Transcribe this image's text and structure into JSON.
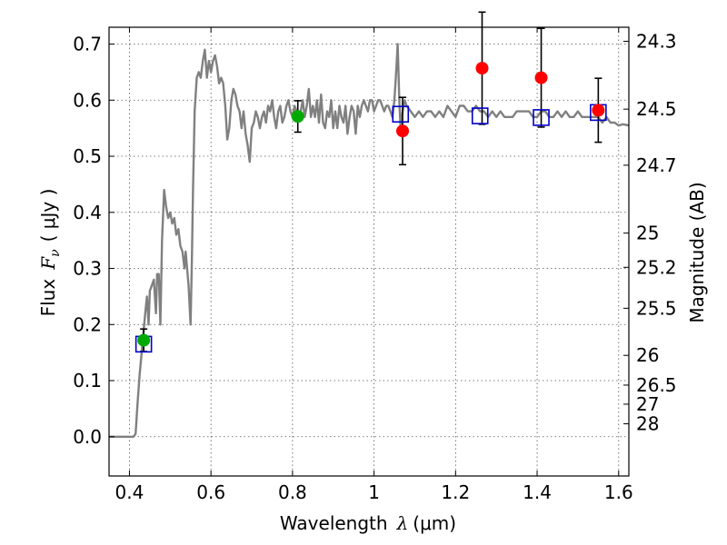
{
  "chart_data": {
    "type": "scatter",
    "xlabel_prefix": "Wavelength",
    "xlabel_symbol": "λ",
    "xlabel_unit": "(μm)",
    "ylabel_prefix": "Flux",
    "ylabel_symbol": "F",
    "ylabel_sub": "ν",
    "ylabel_unit": "( μJy )",
    "y2label": "Magnitude (AB)",
    "xlim": [
      0.35,
      1.625
    ],
    "ylim": [
      -0.07,
      0.73
    ],
    "x_ticks": [
      0.4,
      0.6,
      0.8,
      1.0,
      1.2,
      1.4,
      1.6
    ],
    "x_tick_labels": [
      "0.4",
      "0.6",
      "0.8",
      "1",
      "1.2",
      "1.4",
      "1.6"
    ],
    "y_ticks": [
      0.0,
      0.1,
      0.2,
      0.3,
      0.4,
      0.5,
      0.6,
      0.7
    ],
    "y_tick_labels": [
      "0.0",
      "0.1",
      "0.2",
      "0.3",
      "0.4",
      "0.5",
      "0.6",
      "0.7"
    ],
    "y2_ticks": [
      {
        "label": "24.3",
        "flux": 0.705
      },
      {
        "label": "24.5",
        "flux": 0.584
      },
      {
        "label": "24.7",
        "flux": 0.484
      },
      {
        "label": "25",
        "flux": 0.363
      },
      {
        "label": "25.2",
        "flux": 0.302
      },
      {
        "label": "25.5",
        "flux": 0.229
      },
      {
        "label": "26",
        "flux": 0.145
      },
      {
        "label": "26.5",
        "flux": 0.092
      },
      {
        "label": "27",
        "flux": 0.058
      },
      {
        "label": "28",
        "flux": 0.023
      }
    ],
    "grid": true,
    "colors": {
      "model": "#808080",
      "green": "#00aa00",
      "red": "#ff0000",
      "square": "#0000cc",
      "errorbar": "#000000"
    },
    "model_spectrum": {
      "name": "model",
      "points": [
        [
          0.35,
          0.0
        ],
        [
          0.41,
          0.0
        ],
        [
          0.415,
          0.005
        ],
        [
          0.42,
          0.06
        ],
        [
          0.425,
          0.11
        ],
        [
          0.43,
          0.15
        ],
        [
          0.435,
          0.19
        ],
        [
          0.44,
          0.23
        ],
        [
          0.443,
          0.25
        ],
        [
          0.447,
          0.2
        ],
        [
          0.45,
          0.26
        ],
        [
          0.455,
          0.27
        ],
        [
          0.46,
          0.28
        ],
        [
          0.465,
          0.22
        ],
        [
          0.468,
          0.29
        ],
        [
          0.472,
          0.29
        ],
        [
          0.476,
          0.2
        ],
        [
          0.48,
          0.35
        ],
        [
          0.485,
          0.44
        ],
        [
          0.49,
          0.41
        ],
        [
          0.495,
          0.39
        ],
        [
          0.5,
          0.4
        ],
        [
          0.505,
          0.38
        ],
        [
          0.51,
          0.39
        ],
        [
          0.515,
          0.36
        ],
        [
          0.52,
          0.37
        ],
        [
          0.525,
          0.34
        ],
        [
          0.53,
          0.33
        ],
        [
          0.535,
          0.3
        ],
        [
          0.538,
          0.33
        ],
        [
          0.545,
          0.27
        ],
        [
          0.55,
          0.2
        ],
        [
          0.553,
          0.31
        ],
        [
          0.556,
          0.44
        ],
        [
          0.56,
          0.58
        ],
        [
          0.565,
          0.64
        ],
        [
          0.57,
          0.65
        ],
        [
          0.575,
          0.64
        ],
        [
          0.58,
          0.67
        ],
        [
          0.585,
          0.69
        ],
        [
          0.59,
          0.64
        ],
        [
          0.595,
          0.67
        ],
        [
          0.6,
          0.65
        ],
        [
          0.605,
          0.67
        ],
        [
          0.61,
          0.68
        ],
        [
          0.615,
          0.66
        ],
        [
          0.62,
          0.63
        ],
        [
          0.625,
          0.64
        ],
        [
          0.63,
          0.63
        ],
        [
          0.635,
          0.59
        ],
        [
          0.64,
          0.53
        ],
        [
          0.645,
          0.55
        ],
        [
          0.65,
          0.6
        ],
        [
          0.655,
          0.62
        ],
        [
          0.66,
          0.61
        ],
        [
          0.665,
          0.59
        ],
        [
          0.67,
          0.58
        ],
        [
          0.675,
          0.55
        ],
        [
          0.68,
          0.58
        ],
        [
          0.685,
          0.54
        ],
        [
          0.69,
          0.52
        ],
        [
          0.695,
          0.49
        ],
        [
          0.7,
          0.55
        ],
        [
          0.705,
          0.56
        ],
        [
          0.71,
          0.58
        ],
        [
          0.715,
          0.57
        ],
        [
          0.72,
          0.55
        ],
        [
          0.725,
          0.57
        ],
        [
          0.73,
          0.58
        ],
        [
          0.735,
          0.56
        ],
        [
          0.74,
          0.59
        ],
        [
          0.745,
          0.58
        ],
        [
          0.75,
          0.6
        ],
        [
          0.755,
          0.57
        ],
        [
          0.76,
          0.55
        ],
        [
          0.765,
          0.58
        ],
        [
          0.77,
          0.59
        ],
        [
          0.775,
          0.56
        ],
        [
          0.78,
          0.57
        ],
        [
          0.785,
          0.59
        ],
        [
          0.79,
          0.6
        ],
        [
          0.795,
          0.58
        ],
        [
          0.8,
          0.57
        ],
        [
          0.805,
          0.59
        ],
        [
          0.81,
          0.58
        ],
        [
          0.815,
          0.57
        ],
        [
          0.82,
          0.58
        ],
        [
          0.825,
          0.6
        ],
        [
          0.83,
          0.57
        ],
        [
          0.835,
          0.59
        ],
        [
          0.84,
          0.62
        ],
        [
          0.845,
          0.57
        ],
        [
          0.85,
          0.59
        ],
        [
          0.855,
          0.57
        ],
        [
          0.86,
          0.6
        ],
        [
          0.865,
          0.56
        ],
        [
          0.87,
          0.61
        ],
        [
          0.875,
          0.56
        ],
        [
          0.88,
          0.55
        ],
        [
          0.885,
          0.58
        ],
        [
          0.89,
          0.57
        ],
        [
          0.895,
          0.6
        ],
        [
          0.9,
          0.55
        ],
        [
          0.905,
          0.58
        ],
        [
          0.91,
          0.55
        ],
        [
          0.915,
          0.59
        ],
        [
          0.92,
          0.57
        ],
        [
          0.925,
          0.56
        ],
        [
          0.93,
          0.59
        ],
        [
          0.935,
          0.54
        ],
        [
          0.94,
          0.57
        ],
        [
          0.945,
          0.59
        ],
        [
          0.95,
          0.58
        ],
        [
          0.955,
          0.54
        ],
        [
          0.96,
          0.59
        ],
        [
          0.965,
          0.57
        ],
        [
          0.97,
          0.59
        ],
        [
          0.975,
          0.6
        ],
        [
          0.98,
          0.59
        ],
        [
          0.985,
          0.58
        ],
        [
          0.99,
          0.6
        ],
        [
          0.995,
          0.6
        ],
        [
          1.0,
          0.58
        ],
        [
          1.005,
          0.59
        ],
        [
          1.01,
          0.6
        ],
        [
          1.015,
          0.6
        ],
        [
          1.02,
          0.59
        ],
        [
          1.025,
          0.58
        ],
        [
          1.03,
          0.59
        ],
        [
          1.035,
          0.59
        ],
        [
          1.04,
          0.58
        ],
        [
          1.045,
          0.57
        ],
        [
          1.05,
          0.6
        ],
        [
          1.055,
          0.66
        ],
        [
          1.058,
          0.7
        ],
        [
          1.062,
          0.6
        ],
        [
          1.065,
          0.55
        ],
        [
          1.07,
          0.58
        ],
        [
          1.075,
          0.6
        ],
        [
          1.08,
          0.59
        ],
        [
          1.09,
          0.58
        ],
        [
          1.1,
          0.57
        ],
        [
          1.11,
          0.58
        ],
        [
          1.12,
          0.57
        ],
        [
          1.13,
          0.58
        ],
        [
          1.14,
          0.58
        ],
        [
          1.15,
          0.57
        ],
        [
          1.16,
          0.58
        ],
        [
          1.17,
          0.57
        ],
        [
          1.18,
          0.59
        ],
        [
          1.19,
          0.58
        ],
        [
          1.2,
          0.57
        ],
        [
          1.21,
          0.59
        ],
        [
          1.22,
          0.59
        ],
        [
          1.23,
          0.58
        ],
        [
          1.24,
          0.58
        ],
        [
          1.25,
          0.59
        ],
        [
          1.26,
          0.58
        ],
        [
          1.27,
          0.58
        ],
        [
          1.28,
          0.57
        ],
        [
          1.29,
          0.58
        ],
        [
          1.3,
          0.57
        ],
        [
          1.31,
          0.58
        ],
        [
          1.32,
          0.57
        ],
        [
          1.33,
          0.57
        ],
        [
          1.34,
          0.57
        ],
        [
          1.35,
          0.58
        ],
        [
          1.36,
          0.58
        ],
        [
          1.37,
          0.58
        ],
        [
          1.38,
          0.58
        ],
        [
          1.39,
          0.57
        ],
        [
          1.4,
          0.57
        ],
        [
          1.41,
          0.58
        ],
        [
          1.42,
          0.58
        ],
        [
          1.43,
          0.57
        ],
        [
          1.44,
          0.57
        ],
        [
          1.45,
          0.58
        ],
        [
          1.46,
          0.57
        ],
        [
          1.47,
          0.58
        ],
        [
          1.48,
          0.57
        ],
        [
          1.49,
          0.57
        ],
        [
          1.5,
          0.58
        ],
        [
          1.51,
          0.57
        ],
        [
          1.52,
          0.57
        ],
        [
          1.53,
          0.57
        ],
        [
          1.54,
          0.57
        ],
        [
          1.55,
          0.57
        ],
        [
          1.56,
          0.56
        ],
        [
          1.57,
          0.57
        ],
        [
          1.58,
          0.56
        ],
        [
          1.59,
          0.56
        ],
        [
          1.6,
          0.555
        ],
        [
          1.61,
          0.557
        ],
        [
          1.625,
          0.555
        ]
      ]
    },
    "green_points": [
      {
        "x": 0.435,
        "y": 0.172,
        "err": 0.02
      },
      {
        "x": 0.813,
        "y": 0.571,
        "err": 0.028
      }
    ],
    "red_points": [
      {
        "x": 1.07,
        "y": 0.545,
        "err": 0.06
      },
      {
        "x": 1.265,
        "y": 0.657,
        "err": 0.1
      },
      {
        "x": 1.41,
        "y": 0.64,
        "err": 0.088
      },
      {
        "x": 1.55,
        "y": 0.582,
        "err": 0.057
      }
    ],
    "square_points": [
      {
        "x": 0.435,
        "y": 0.165
      },
      {
        "x": 1.065,
        "y": 0.575
      },
      {
        "x": 1.26,
        "y": 0.572
      },
      {
        "x": 1.41,
        "y": 0.569
      },
      {
        "x": 1.55,
        "y": 0.578
      }
    ]
  }
}
